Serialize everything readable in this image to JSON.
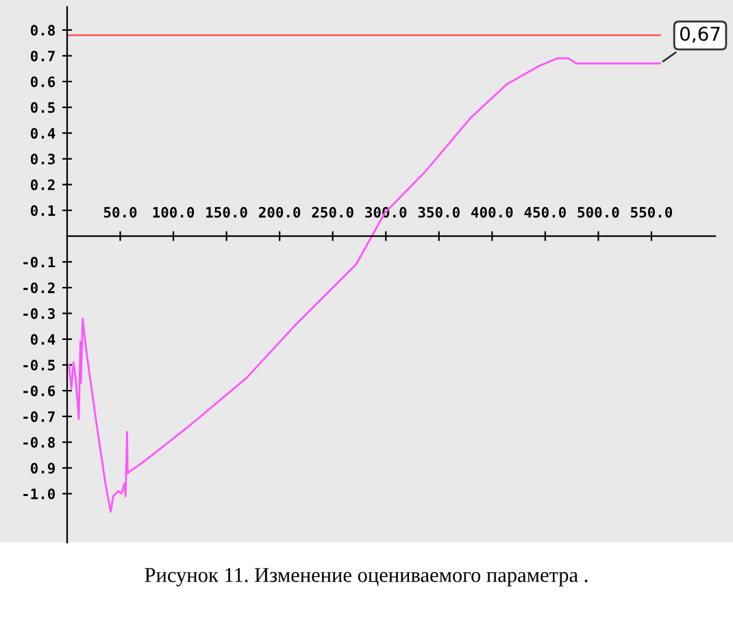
{
  "chart_data": {
    "type": "line",
    "x": [
      1.7,
      4,
      6,
      8,
      11,
      12.5,
      13,
      14.6,
      18.5,
      27,
      36,
      41,
      43.4,
      48,
      51,
      54,
      55,
      56.4,
      57,
      74,
      117,
      169,
      216,
      272,
      299,
      337,
      380,
      414,
      444,
      461,
      472,
      479,
      513,
      558
    ],
    "series": [
      {
        "color": "#ff55ff",
        "values": [
          -0.5,
          -0.59,
          -0.49,
          -0.55,
          -0.71,
          -0.41,
          -0.57,
          -0.32,
          -0.46,
          -0.71,
          -0.96,
          -1.07,
          -1.01,
          -0.99,
          -1.0,
          -0.96,
          -1.01,
          -0.76,
          -0.92,
          -0.87,
          -0.73,
          -0.55,
          -0.34,
          -0.11,
          0.09,
          0.25,
          0.46,
          0.59,
          0.66,
          0.69,
          0.69,
          0.67,
          0.67,
          0.67
        ]
      }
    ],
    "xlim": [
      0,
      610
    ],
    "ylim": [
      -1.19,
      0.89
    ],
    "xticks": [
      {
        "value": 50,
        "label": "50.0"
      },
      {
        "value": 100,
        "label": "100.0"
      },
      {
        "value": 150,
        "label": "150.0"
      },
      {
        "value": 200,
        "label": "200.0"
      },
      {
        "value": 250,
        "label": "250.0"
      },
      {
        "value": 300,
        "label": "300.0"
      },
      {
        "value": 350,
        "label": "350.0"
      },
      {
        "value": 400,
        "label": "400.0"
      },
      {
        "value": 450,
        "label": "450.0"
      },
      {
        "value": 500,
        "label": "500.0"
      },
      {
        "value": 550,
        "label": "550.0"
      }
    ],
    "yticks": [
      0.8,
      0.7,
      0.6,
      0.5,
      0.4,
      0.3,
      0.2,
      0.1,
      -0.1,
      -0.2,
      -0.3,
      {
        "value": -0.4,
        "label": "0.4"
      },
      -0.5,
      -0.6,
      -0.7,
      -0.8,
      {
        "value": -0.9,
        "label": "0.9"
      },
      {
        "value": -1.0,
        "label": "-1.0"
      }
    ],
    "ref_lines": [
      {
        "axis": "y",
        "value": 0.78,
        "color": "#ff6060"
      }
    ],
    "annotations": [
      {
        "text": "0,67",
        "x": 558,
        "y": 0.67
      },
      "Рисунок 11. Изменение оцениваемого параметра ."
    ],
    "grid": false,
    "legend": false,
    "marker": "none",
    "line_style": "solid"
  }
}
